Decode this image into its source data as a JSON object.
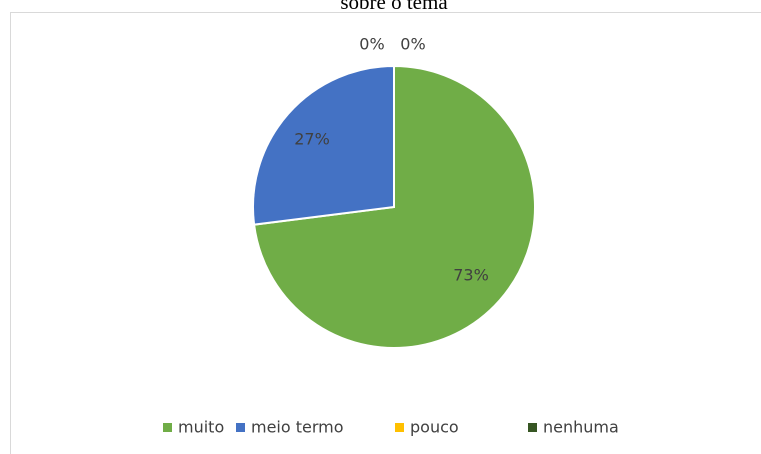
{
  "chart_data": {
    "type": "pie",
    "title": "sobre o tema",
    "categories": [
      "muito",
      "meio termo",
      "pouco",
      "nenhuma"
    ],
    "values": [
      73,
      27,
      0,
      0
    ],
    "value_labels": [
      "73%",
      "27%",
      "0%",
      "0%"
    ],
    "colors": [
      "#70ad47",
      "#4472c4",
      "#ffc000",
      "#375623"
    ],
    "legend": "bottom"
  }
}
